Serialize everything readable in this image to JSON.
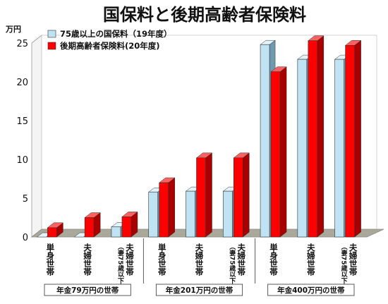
{
  "chart_data": {
    "type": "bar",
    "title": "国保料と後期高齢者保険料",
    "ylabel": "万円",
    "ylim": [
      0,
      25
    ],
    "yticks": [
      0,
      5,
      10,
      15,
      20,
      25
    ],
    "legend_position": "top-left",
    "categories": [
      {
        "main": "単身世帯",
        "sub": ""
      },
      {
        "main": "夫婦世帯",
        "sub": ""
      },
      {
        "main": "夫婦世帯",
        "sub": "（妻75歳以下）"
      },
      {
        "main": "単身世帯",
        "sub": ""
      },
      {
        "main": "夫婦世帯",
        "sub": ""
      },
      {
        "main": "夫婦世帯",
        "sub": "（妻75歳以下）"
      },
      {
        "main": "単身世帯",
        "sub": ""
      },
      {
        "main": "夫婦世帯",
        "sub": ""
      },
      {
        "main": "夫婦世帯",
        "sub": "（妻75歳以下）"
      }
    ],
    "groups": [
      {
        "label": "年金79万円の世帯",
        "span": [
          0,
          2
        ]
      },
      {
        "label": "年金201万円の世帯",
        "span": [
          3,
          5
        ]
      },
      {
        "label": "年金400万円の世帯",
        "span": [
          6,
          8
        ]
      }
    ],
    "series": [
      {
        "name": "75歳以上の国保料（19年度）",
        "color": "#bfe3f2",
        "side": "#6d9aae",
        "top": "#e3f3fa",
        "values": [
          0,
          0,
          1.3,
          5.8,
          5.9,
          5.9,
          24.8,
          22.9,
          22.9
        ]
      },
      {
        "name": "後期高齢者保険料(20年度)",
        "color": "#ff0000",
        "side": "#a80000",
        "top": "#ff6060",
        "values": [
          1.2,
          2.5,
          2.6,
          7.0,
          10.2,
          10.2,
          21.3,
          25.3,
          24.7
        ]
      }
    ]
  }
}
